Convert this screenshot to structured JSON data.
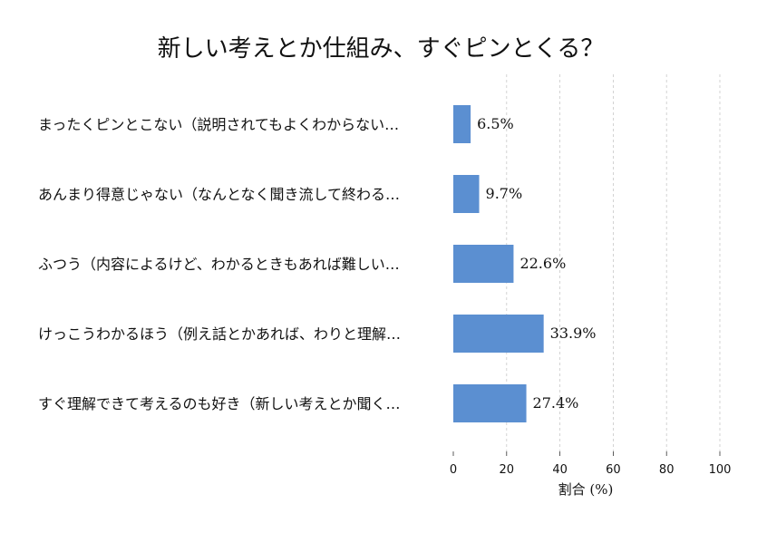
{
  "chart_data": {
    "type": "bar",
    "orientation": "horizontal",
    "title": "新しい考えとか仕組み、すぐピンとくる？",
    "xlabel": "割合 (%)",
    "ylabel": "",
    "xlim": [
      0,
      100
    ],
    "xticks": [
      0,
      20,
      40,
      60,
      80,
      100
    ],
    "grid": "vertical dashed",
    "bar_color": "#5b8fd1",
    "categories": [
      "まったくピンとこない（説明されてもよくわからない…",
      "あんまり得意じゃない（なんとなく聞き流して終わる…",
      "ふつう（内容によるけど、わかるときもあれば難しい…",
      "けっこうわかるほう（例え話とかあれば、わりと理解…",
      "すぐ理解できて考えるのも好き（新しい考えとか聞く…"
    ],
    "values": [
      6.5,
      9.7,
      22.6,
      33.9,
      27.4
    ],
    "value_labels": [
      "6.5%",
      "9.7%",
      "22.6%",
      "33.9%",
      "27.4%"
    ]
  }
}
